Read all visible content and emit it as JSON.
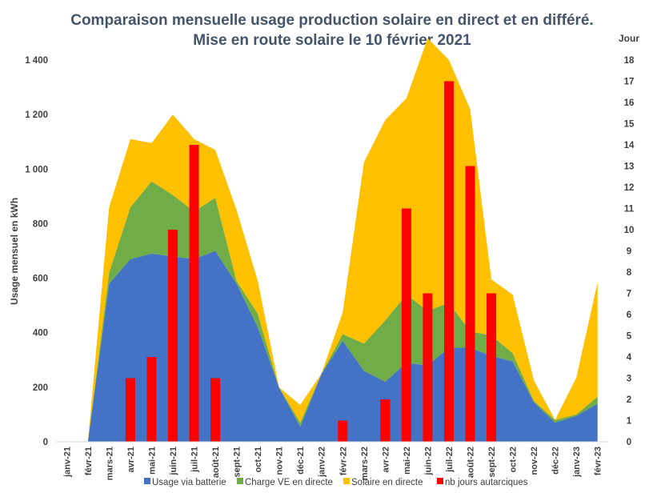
{
  "chart_data": {
    "type": "area",
    "title_line1": "Comparaison  mensuelle usage production  solaire  en direct et en différé.",
    "title_line2": "Mise en route solaire  le 10 février 2021",
    "ylabel": "Usage  mensuel en kWh",
    "y2label": "Jour",
    "ylim": [
      0,
      1400
    ],
    "yticks": [
      0,
      200,
      400,
      600,
      800,
      1000,
      1200,
      1400
    ],
    "ytick_labels": [
      "0",
      "200",
      "400",
      "600",
      "800",
      "1 000",
      "1 200",
      "1 400"
    ],
    "y2lim": [
      0,
      18
    ],
    "y2ticks": [
      0,
      1,
      2,
      3,
      4,
      5,
      6,
      7,
      8,
      9,
      10,
      11,
      12,
      13,
      14,
      15,
      16,
      17,
      18
    ],
    "y2tick_labels": [
      "0",
      "1",
      "2",
      "3",
      "4",
      "5",
      "6",
      "7",
      "8",
      "9",
      "10",
      "11",
      "12",
      "13",
      "14",
      "15",
      "16",
      "17",
      "18"
    ],
    "categories": [
      "janv-21",
      "févr-21",
      "mars-21",
      "avr-21",
      "mai-21",
      "juin-21",
      "juil-21",
      "août-21",
      "sept-21",
      "oct-21",
      "nov-21",
      "déc-21",
      "janv-22",
      "févr-22",
      "mars-22",
      "avr-22",
      "mai-22",
      "juin-22",
      "juil-22",
      "août-22",
      "sept-22",
      "oct-22",
      "nov-22",
      "déc-22",
      "janv-23",
      "févr-23"
    ],
    "series": [
      {
        "name": "Usage via batterie",
        "type": "area",
        "color": "#4472c4",
        "values": [
          0,
          0,
          580,
          670,
          690,
          680,
          670,
          700,
          580,
          420,
          200,
          55,
          250,
          370,
          260,
          220,
          290,
          280,
          345,
          345,
          315,
          295,
          145,
          70,
          95,
          140
        ]
      },
      {
        "name": "Charge VE en directe",
        "type": "area",
        "color": "#70ad47",
        "values": [
          0,
          0,
          40,
          190,
          265,
          225,
          175,
          195,
          10,
          50,
          0,
          15,
          0,
          25,
          100,
          225,
          250,
          200,
          165,
          60,
          75,
          30,
          5,
          10,
          5,
          25
        ]
      },
      {
        "name": "Solaire en directe",
        "type": "area",
        "color": "#ffc000",
        "values": [
          0,
          0,
          240,
          250,
          140,
          295,
          265,
          175,
          260,
          120,
          0,
          65,
          0,
          80,
          665,
          735,
          720,
          1000,
          890,
          815,
          205,
          215,
          75,
          0,
          135,
          420
        ]
      },
      {
        "name": "nb jours autarciques",
        "type": "bar",
        "axis": "right",
        "color": "#ff0000",
        "values": [
          0,
          0,
          0,
          3,
          4,
          10,
          14,
          3,
          0,
          0,
          0,
          0,
          0,
          1,
          0,
          2,
          11,
          7,
          17,
          13,
          7,
          0,
          0,
          0,
          0,
          0
        ]
      }
    ],
    "grid": false,
    "legend_position": "bottom"
  }
}
